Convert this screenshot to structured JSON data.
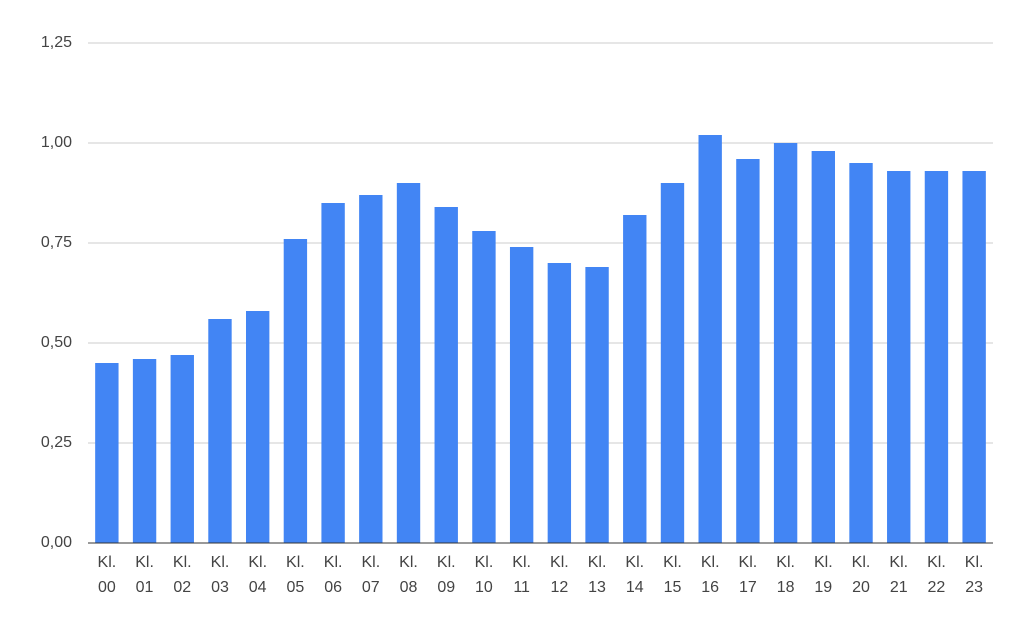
{
  "chart_data": {
    "type": "bar",
    "categories": [
      "Kl. 00",
      "Kl. 01",
      "Kl. 02",
      "Kl. 03",
      "Kl. 04",
      "Kl. 05",
      "Kl. 06",
      "Kl. 07",
      "Kl. 08",
      "Kl. 09",
      "Kl. 10",
      "Kl. 11",
      "Kl. 12",
      "Kl. 13",
      "Kl. 14",
      "Kl. 15",
      "Kl. 16",
      "Kl. 17",
      "Kl. 18",
      "Kl. 19",
      "Kl. 20",
      "Kl. 21",
      "Kl. 22",
      "Kl. 23"
    ],
    "values": [
      0.45,
      0.46,
      0.47,
      0.56,
      0.58,
      0.76,
      0.85,
      0.87,
      0.9,
      0.84,
      0.78,
      0.74,
      0.7,
      0.69,
      0.82,
      0.9,
      1.02,
      0.96,
      1.0,
      0.98,
      0.95,
      0.93,
      0.93,
      0.93
    ],
    "color": "#4285f4",
    "ylim": [
      0,
      1.25
    ],
    "yticks": [
      {
        "value": 0,
        "label": "0,00"
      },
      {
        "value": 0.25,
        "label": "0,25"
      },
      {
        "value": 0.5,
        "label": "0,50"
      },
      {
        "value": 0.75,
        "label": "0,75"
      },
      {
        "value": 1,
        "label": "1,00"
      },
      {
        "value": 1.25,
        "label": "1,25"
      }
    ],
    "grid": true
  }
}
